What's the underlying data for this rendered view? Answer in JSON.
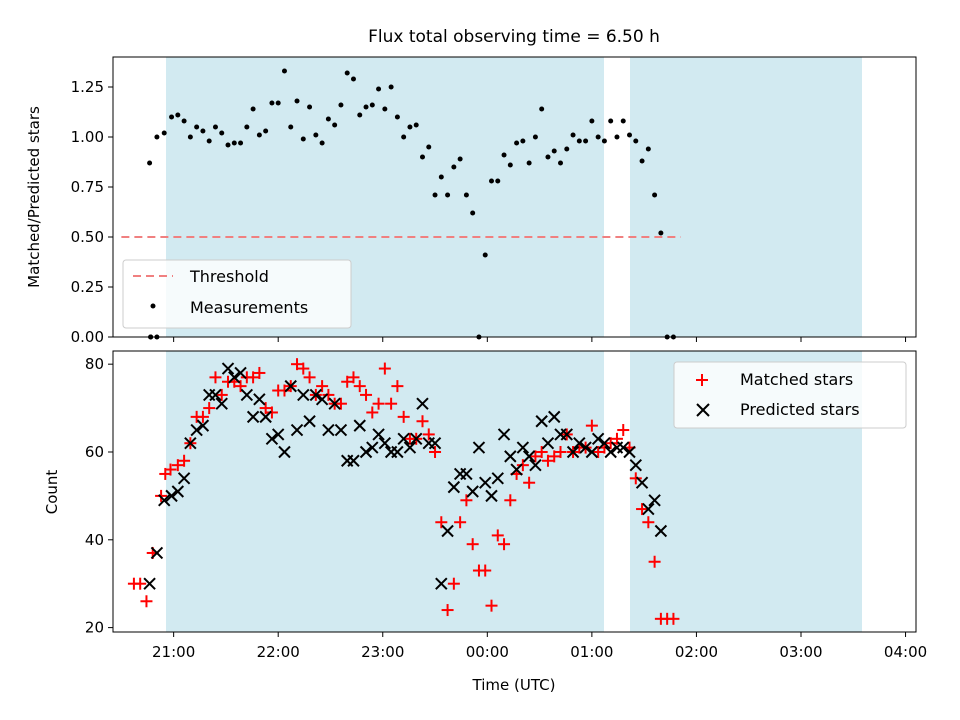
{
  "chart_data": {
    "type": "scatter",
    "title": "Flux total observing time = 6.50 h",
    "xlabel": "Time (UTC)",
    "x_unit": "hours since 21:00 UTC",
    "x_ticks": [
      {
        "v": 0,
        "label": "21:00"
      },
      {
        "v": 1,
        "label": "22:00"
      },
      {
        "v": 2,
        "label": "23:00"
      },
      {
        "v": 3,
        "label": "00:00"
      },
      {
        "v": 4,
        "label": "01:00"
      },
      {
        "v": 5,
        "label": "02:00"
      },
      {
        "v": 6,
        "label": "03:00"
      },
      {
        "v": 7,
        "label": "04:00"
      }
    ],
    "xlim": [
      -0.58,
      7.1
    ],
    "observing_windows": [
      {
        "start": "20:48",
        "end": "01:04"
      },
      {
        "start": "01:17",
        "end": "03:32"
      }
    ],
    "top": {
      "ylabel": "Matched/Predicted stars",
      "ylim": [
        0,
        1.4
      ],
      "y_ticks": [
        "0.00",
        "0.25",
        "0.50",
        "0.75",
        "1.00",
        "1.25"
      ],
      "threshold": {
        "name": "Threshold",
        "value": 0.5,
        "color": "#f08080"
      },
      "series": [
        {
          "name": "Measurements",
          "color": "#000000",
          "points": [
            [
              -0.22,
              0
            ],
            [
              -0.16,
              0
            ],
            [
              -0.22,
              0
            ],
            [
              -0.23,
              0.87
            ],
            [
              -0.16,
              1.0
            ],
            [
              -0.09,
              1.02
            ],
            [
              -0.02,
              1.1
            ],
            [
              0.04,
              1.11
            ],
            [
              0.1,
              1.08
            ],
            [
              0.16,
              1.0
            ],
            [
              0.22,
              1.05
            ],
            [
              0.28,
              1.03
            ],
            [
              0.34,
              0.98
            ],
            [
              0.4,
              1.05
            ],
            [
              0.46,
              1.02
            ],
            [
              0.52,
              0.96
            ],
            [
              0.58,
              0.97
            ],
            [
              0.64,
              0.97
            ],
            [
              0.7,
              1.05
            ],
            [
              0.76,
              1.14
            ],
            [
              0.82,
              1.01
            ],
            [
              0.88,
              1.03
            ],
            [
              0.94,
              1.17
            ],
            [
              1.0,
              1.17
            ],
            [
              1.06,
              1.33
            ],
            [
              1.12,
              1.05
            ],
            [
              1.18,
              1.18
            ],
            [
              1.24,
              0.99
            ],
            [
              1.3,
              1.15
            ],
            [
              1.36,
              1.01
            ],
            [
              1.42,
              0.97
            ],
            [
              1.48,
              1.09
            ],
            [
              1.54,
              1.06
            ],
            [
              1.6,
              1.16
            ],
            [
              1.66,
              1.32
            ],
            [
              1.72,
              1.29
            ],
            [
              1.78,
              1.11
            ],
            [
              1.84,
              1.15
            ],
            [
              1.9,
              1.16
            ],
            [
              1.96,
              1.24
            ],
            [
              2.02,
              1.14
            ],
            [
              2.08,
              1.25
            ],
            [
              2.14,
              1.1
            ],
            [
              2.2,
              1.0
            ],
            [
              2.26,
              1.05
            ],
            [
              2.32,
              1.06
            ],
            [
              2.38,
              0.9
            ],
            [
              2.44,
              0.95
            ],
            [
              2.5,
              0.71
            ],
            [
              2.56,
              0.8
            ],
            [
              2.62,
              0.71
            ],
            [
              2.68,
              0.85
            ],
            [
              2.74,
              0.89
            ],
            [
              2.8,
              0.71
            ],
            [
              2.86,
              0.62
            ],
            [
              2.92,
              0
            ],
            [
              2.98,
              0.41
            ],
            [
              3.04,
              0.78
            ],
            [
              3.1,
              0.78
            ],
            [
              3.16,
              0.91
            ],
            [
              3.22,
              0.86
            ],
            [
              3.28,
              0.97
            ],
            [
              3.34,
              0.98
            ],
            [
              3.4,
              0.87
            ],
            [
              3.46,
              1.0
            ],
            [
              3.52,
              1.14
            ],
            [
              3.58,
              0.9
            ],
            [
              3.64,
              0.93
            ],
            [
              3.7,
              0.87
            ],
            [
              3.76,
              0.94
            ],
            [
              3.82,
              1.01
            ],
            [
              3.88,
              0.98
            ],
            [
              3.94,
              0.98
            ],
            [
              4.0,
              1.08
            ],
            [
              4.06,
              1.0
            ],
            [
              4.12,
              0.98
            ],
            [
              4.18,
              1.08
            ],
            [
              4.24,
              1.0
            ],
            [
              4.3,
              1.08
            ],
            [
              4.36,
              1.01
            ],
            [
              4.42,
              0.98
            ],
            [
              4.48,
              0.88
            ],
            [
              4.54,
              0.94
            ],
            [
              4.6,
              0.71
            ],
            [
              4.66,
              0.52
            ],
            [
              4.72,
              0
            ],
            [
              4.78,
              0
            ]
          ]
        }
      ],
      "legend": [
        "Threshold",
        "Measurements"
      ],
      "legend_loc": "lower left"
    },
    "bottom": {
      "ylabel": "Count",
      "ylim": [
        19,
        83
      ],
      "y_ticks": [
        "20",
        "40",
        "60",
        "80"
      ],
      "legend_loc": "upper right",
      "series": [
        {
          "name": "Matched stars",
          "marker": "+",
          "color": "#ff0000",
          "points": [
            [
              -0.38,
              30
            ],
            [
              -0.32,
              30
            ],
            [
              -0.26,
              26
            ],
            [
              -0.2,
              37
            ],
            [
              -0.12,
              50
            ],
            [
              -0.08,
              55
            ],
            [
              -0.03,
              56
            ],
            [
              0.04,
              57
            ],
            [
              0.1,
              58
            ],
            [
              0.16,
              62
            ],
            [
              0.22,
              68
            ],
            [
              0.28,
              68
            ],
            [
              0.34,
              70
            ],
            [
              0.4,
              77
            ],
            [
              0.46,
              73
            ],
            [
              0.52,
              76
            ],
            [
              0.58,
              76
            ],
            [
              0.64,
              75
            ],
            [
              0.7,
              77
            ],
            [
              0.76,
              77
            ],
            [
              0.82,
              78
            ],
            [
              0.88,
              70
            ],
            [
              0.94,
              69
            ],
            [
              1.0,
              74
            ],
            [
              1.06,
              74
            ],
            [
              1.12,
              75
            ],
            [
              1.18,
              80
            ],
            [
              1.24,
              79
            ],
            [
              1.3,
              77
            ],
            [
              1.36,
              73
            ],
            [
              1.42,
              75
            ],
            [
              1.48,
              73
            ],
            [
              1.54,
              71
            ],
            [
              1.6,
              71
            ],
            [
              1.66,
              76
            ],
            [
              1.72,
              77
            ],
            [
              1.78,
              75
            ],
            [
              1.84,
              73
            ],
            [
              1.9,
              69
            ],
            [
              1.96,
              71
            ],
            [
              2.02,
              79
            ],
            [
              2.08,
              71
            ],
            [
              2.14,
              75
            ],
            [
              2.2,
              68
            ],
            [
              2.26,
              63
            ],
            [
              2.32,
              63
            ],
            [
              2.38,
              67
            ],
            [
              2.44,
              64
            ],
            [
              2.5,
              60
            ],
            [
              2.56,
              44
            ],
            [
              2.62,
              24
            ],
            [
              2.68,
              30
            ],
            [
              2.74,
              44
            ],
            [
              2.8,
              49
            ],
            [
              2.86,
              39
            ],
            [
              2.92,
              33
            ],
            [
              2.98,
              33
            ],
            [
              3.04,
              25
            ],
            [
              3.1,
              41
            ],
            [
              3.16,
              39
            ],
            [
              3.22,
              49
            ],
            [
              3.28,
              55
            ],
            [
              3.34,
              57
            ],
            [
              3.4,
              53
            ],
            [
              3.46,
              59
            ],
            [
              3.52,
              60
            ],
            [
              3.58,
              58
            ],
            [
              3.64,
              59
            ],
            [
              3.7,
              60
            ],
            [
              3.76,
              64
            ],
            [
              3.82,
              60
            ],
            [
              3.88,
              61
            ],
            [
              3.94,
              61
            ],
            [
              4.0,
              66
            ],
            [
              4.06,
              60
            ],
            [
              4.12,
              61
            ],
            [
              4.18,
              62
            ],
            [
              4.24,
              63
            ],
            [
              4.3,
              65
            ],
            [
              4.36,
              61
            ],
            [
              4.42,
              54
            ],
            [
              4.48,
              47
            ],
            [
              4.54,
              44
            ],
            [
              4.6,
              35
            ],
            [
              4.66,
              22
            ],
            [
              4.72,
              22
            ],
            [
              4.78,
              22
            ]
          ]
        },
        {
          "name": "Predicted stars",
          "marker": "x",
          "color": "#000000",
          "points": [
            [
              -0.23,
              30
            ],
            [
              -0.16,
              37
            ],
            [
              -0.09,
              49
            ],
            [
              -0.02,
              50
            ],
            [
              0.04,
              51
            ],
            [
              0.1,
              54
            ],
            [
              0.16,
              62
            ],
            [
              0.22,
              65
            ],
            [
              0.28,
              66
            ],
            [
              0.34,
              73
            ],
            [
              0.4,
              73
            ],
            [
              0.46,
              71
            ],
            [
              0.52,
              79
            ],
            [
              0.58,
              77
            ],
            [
              0.64,
              78
            ],
            [
              0.7,
              73
            ],
            [
              0.76,
              68
            ],
            [
              0.82,
              72
            ],
            [
              0.88,
              68
            ],
            [
              0.94,
              63
            ],
            [
              1.0,
              64
            ],
            [
              1.06,
              60
            ],
            [
              1.12,
              75
            ],
            [
              1.18,
              65
            ],
            [
              1.24,
              73
            ],
            [
              1.3,
              67
            ],
            [
              1.36,
              73
            ],
            [
              1.42,
              72
            ],
            [
              1.48,
              65
            ],
            [
              1.54,
              71
            ],
            [
              1.6,
              65
            ],
            [
              1.66,
              58
            ],
            [
              1.72,
              58
            ],
            [
              1.78,
              66
            ],
            [
              1.84,
              60
            ],
            [
              1.9,
              61
            ],
            [
              1.96,
              64
            ],
            [
              2.02,
              62
            ],
            [
              2.08,
              60
            ],
            [
              2.14,
              60
            ],
            [
              2.2,
              63
            ],
            [
              2.26,
              61
            ],
            [
              2.32,
              63
            ],
            [
              2.38,
              71
            ],
            [
              2.44,
              62
            ],
            [
              2.5,
              62
            ],
            [
              2.56,
              30
            ],
            [
              2.62,
              42
            ],
            [
              2.68,
              52
            ],
            [
              2.74,
              55
            ],
            [
              2.8,
              55
            ],
            [
              2.86,
              51
            ],
            [
              2.92,
              61
            ],
            [
              2.98,
              53
            ],
            [
              3.04,
              50
            ],
            [
              3.1,
              54
            ],
            [
              3.16,
              64
            ],
            [
              3.22,
              59
            ],
            [
              3.28,
              56
            ],
            [
              3.34,
              61
            ],
            [
              3.4,
              59
            ],
            [
              3.46,
              57
            ],
            [
              3.52,
              67
            ],
            [
              3.58,
              62
            ],
            [
              3.64,
              68
            ],
            [
              3.7,
              64
            ],
            [
              3.76,
              64
            ],
            [
              3.82,
              60
            ],
            [
              3.88,
              62
            ],
            [
              3.94,
              61
            ],
            [
              4.0,
              60
            ],
            [
              4.06,
              63
            ],
            [
              4.12,
              62
            ],
            [
              4.18,
              60
            ],
            [
              4.24,
              61
            ],
            [
              4.3,
              61
            ],
            [
              4.36,
              60
            ],
            [
              4.42,
              57
            ],
            [
              4.48,
              53
            ],
            [
              4.54,
              47
            ],
            [
              4.6,
              49
            ],
            [
              4.66,
              42
            ]
          ]
        }
      ]
    }
  }
}
